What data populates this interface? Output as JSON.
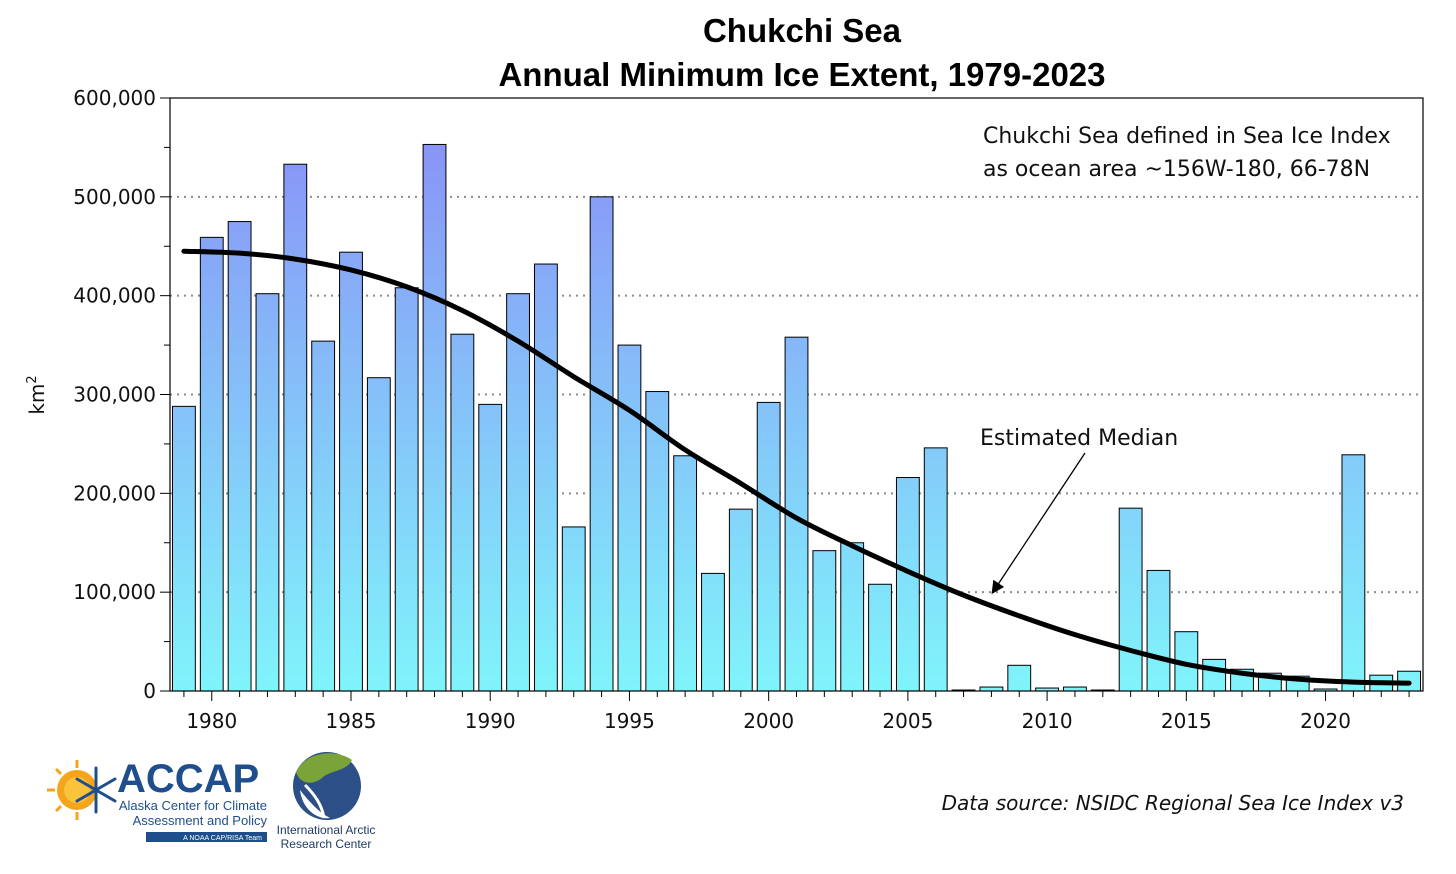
{
  "chart_data": {
    "type": "bar",
    "title_line1": "Chukchi Sea",
    "title_line2": "Annual Minimum Ice Extent, 1979-2023",
    "ylabel": "km",
    "ylabel_sup": "2",
    "ylim": [
      0,
      600000
    ],
    "yticks": [
      0,
      100000,
      200000,
      300000,
      400000,
      500000,
      600000
    ],
    "ytick_labels": [
      "0",
      "100,000",
      "200,000",
      "300,000",
      "400,000",
      "500,000",
      "600,000"
    ],
    "xticks": [
      1980,
      1985,
      1990,
      1995,
      2000,
      2005,
      2010,
      2015,
      2020
    ],
    "xlim": [
      1978.5,
      2023.5
    ],
    "grid": "horizontal-dotted",
    "x": [
      1979,
      1980,
      1981,
      1982,
      1983,
      1984,
      1985,
      1986,
      1987,
      1988,
      1989,
      1990,
      1991,
      1992,
      1993,
      1994,
      1995,
      1996,
      1997,
      1998,
      1999,
      2000,
      2001,
      2002,
      2003,
      2004,
      2005,
      2006,
      2007,
      2008,
      2009,
      2010,
      2011,
      2012,
      2013,
      2014,
      2015,
      2016,
      2017,
      2018,
      2019,
      2020,
      2021,
      2022,
      2023
    ],
    "values": [
      288000,
      459000,
      475000,
      402000,
      533000,
      354000,
      444000,
      317000,
      408000,
      553000,
      361000,
      290000,
      402000,
      432000,
      166000,
      500000,
      350000,
      303000,
      238000,
      119000,
      184000,
      292000,
      358000,
      142000,
      150000,
      108000,
      216000,
      246000,
      1000,
      4000,
      26000,
      3000,
      4000,
      1000,
      185000,
      122000,
      60000,
      32000,
      22000,
      18000,
      15000,
      2000,
      239000,
      16000,
      20000
    ],
    "bar_colors": {
      "top": "#8a8cf6",
      "bottom": "#80f4fb",
      "stroke": "#000000"
    },
    "median_line": {
      "label": "Estimated Median",
      "color": "#000000",
      "x": [
        1979,
        1981,
        1983,
        1985,
        1987,
        1989,
        1991,
        1993,
        1995,
        1997,
        1999,
        2001,
        2003,
        2005,
        2007,
        2009,
        2011,
        2013,
        2015,
        2017,
        2019,
        2021,
        2023
      ],
      "y": [
        445000,
        443000,
        437000,
        426000,
        409000,
        385000,
        354000,
        318000,
        284000,
        244000,
        210000,
        175000,
        147000,
        121000,
        97000,
        76000,
        57000,
        41000,
        27000,
        18000,
        12000,
        9000,
        8000
      ]
    },
    "annotation_line1": "Chukchi Sea defined in Sea Ice Index",
    "annotation_line2": "as ocean area ~156W-180, 66-78N",
    "source": "Data source: NSIDC Regional Sea Ice Index v3"
  },
  "logos": {
    "accap_name": "ACCAP",
    "accap_line1": "Alaska Center for Climate",
    "accap_line2": "Assessment and Policy",
    "accap_tag": "A NOAA CAP/RISA Team",
    "iarc_line1": "International Arctic",
    "iarc_line2": "Research Center"
  }
}
